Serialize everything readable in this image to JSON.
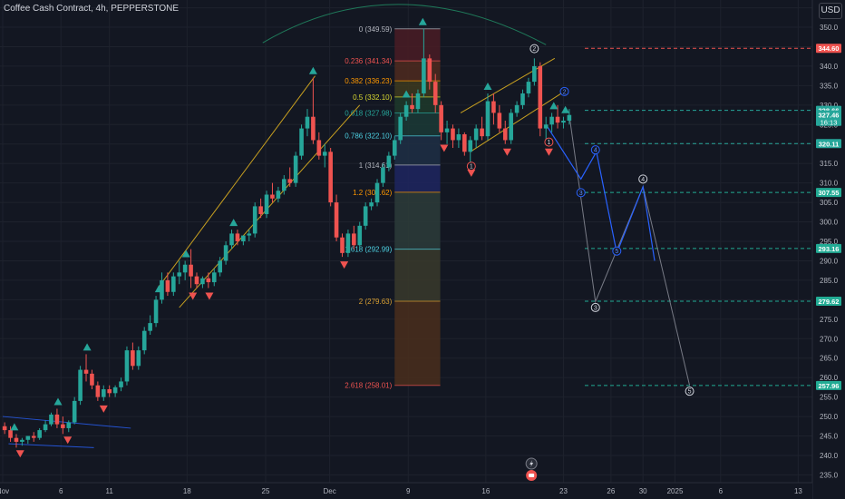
{
  "header": {
    "title": "Coffee Cash Contract, 4h, PEPPERSTONE",
    "currency": "USD"
  },
  "colors": {
    "up": "#26a69a",
    "down": "#ef5350",
    "bg": "#131722",
    "text": "#d1d4dc",
    "grid": "#1e222d"
  },
  "chart_data": {
    "type": "candlestick",
    "title": "Coffee Cash Contract, 4h, PEPPERSTONE",
    "ylim": [
      233,
      357
    ],
    "y_ticks": [
      235,
      240,
      245,
      250,
      255,
      260,
      265,
      270,
      275,
      280,
      285,
      290,
      295,
      300,
      305,
      310,
      315,
      320,
      325,
      330,
      335,
      340,
      345,
      350,
      355
    ],
    "x_ticks": [
      {
        "label": "Nov",
        "t": 0
      },
      {
        "label": "6",
        "t": 60
      },
      {
        "label": "11",
        "t": 110
      },
      {
        "label": "18",
        "t": 190
      },
      {
        "label": "25",
        "t": 271
      },
      {
        "label": "Dec",
        "t": 337
      },
      {
        "label": "9",
        "t": 418
      },
      {
        "label": "16",
        "t": 498
      },
      {
        "label": "23",
        "t": 578
      },
      {
        "label": "26",
        "t": 627
      },
      {
        "label": "30",
        "t": 660
      },
      {
        "label": "2025",
        "t": 693
      },
      {
        "label": "6",
        "t": 740
      },
      {
        "label": "13",
        "t": 820
      }
    ],
    "price_labels": [
      {
        "text": "344.60",
        "value": 344.6,
        "color": "#ef5350"
      },
      {
        "text": "328.66",
        "value": 328.66,
        "color": "#26a69a"
      },
      {
        "text": "327.46",
        "value": 327.46,
        "color": "#26a69a",
        "sub": "16:13"
      },
      {
        "text": "320.11",
        "value": 320.11,
        "color": "#26a69a"
      },
      {
        "text": "307.55",
        "value": 307.55,
        "color": "#22ab94"
      },
      {
        "text": "293.16",
        "value": 293.16,
        "color": "#22ab94"
      },
      {
        "text": "279.62",
        "value": 279.62,
        "color": "#22ab94"
      },
      {
        "text": "257.96",
        "value": 257.96,
        "color": "#22ab94"
      }
    ],
    "fib_levels": [
      {
        "ratio": "0",
        "value": 349.59,
        "label": "0 (349.59)",
        "color": "#b2b5be",
        "fill": "#4a1c24"
      },
      {
        "ratio": "0.236",
        "value": 341.34,
        "label": "0.236 (341.34)",
        "color": "#ef5350",
        "fill": "#4f2a1e"
      },
      {
        "ratio": "0.382",
        "value": 336.23,
        "label": "0.382 (336.23)",
        "color": "#ff9800",
        "fill": "#3d3a1e"
      },
      {
        "ratio": "0.5",
        "value": 332.1,
        "label": "0.5 (332.10)",
        "color": "#d9d932",
        "fill": "#1e3a2a"
      },
      {
        "ratio": "0.618",
        "value": 327.98,
        "label": "0.618 (327.98)",
        "color": "#26a69a",
        "fill": "#1b3a36"
      },
      {
        "ratio": "0.786",
        "value": 322.1,
        "label": "0.786 (322.10)",
        "color": "#4dd0e1",
        "fill": "#1e2f45"
      },
      {
        "ratio": "1",
        "value": 314.61,
        "label": "1 (314.61)",
        "color": "#b2b5be",
        "fill": "#1e2660"
      },
      {
        "ratio": "1.2",
        "value": 307.62,
        "label": "1.2 (307.62)",
        "color": "#ff9800",
        "fill": "#2d3c3a"
      },
      {
        "ratio": "1.618",
        "value": 292.99,
        "label": "1.618 (292.99)",
        "color": "#4dd0e1",
        "fill": "#3a3a2c"
      },
      {
        "ratio": "2",
        "value": 279.63,
        "label": "2 (279.63)",
        "color": "#d9a032",
        "fill": "#4a2e1c"
      },
      {
        "ratio": "2.618",
        "value": 258.01,
        "label": "2.618 (258.01)",
        "color": "#ef5350"
      }
    ],
    "candles": [
      {
        "t": 2,
        "o": 247.5,
        "h": 248.5,
        "c": 246.5,
        "l": 245.5
      },
      {
        "t": 8,
        "o": 246.5,
        "h": 247.5,
        "c": 244.5,
        "l": 243.5
      },
      {
        "t": 14,
        "o": 244.5,
        "h": 245.5,
        "c": 243.5,
        "l": 242.0
      },
      {
        "t": 20,
        "o": 243.5,
        "h": 244.5,
        "c": 244.0,
        "l": 242.5
      },
      {
        "t": 26,
        "o": 244,
        "h": 245,
        "c": 245,
        "l": 243
      },
      {
        "t": 32,
        "o": 245,
        "h": 246,
        "c": 244.5,
        "l": 243.5
      },
      {
        "t": 38,
        "o": 244.5,
        "h": 247,
        "c": 246.5,
        "l": 244
      },
      {
        "t": 44,
        "o": 246.5,
        "h": 249,
        "c": 248,
        "l": 246
      },
      {
        "t": 50,
        "o": 248,
        "h": 251,
        "c": 250.5,
        "l": 247.5
      },
      {
        "t": 56,
        "o": 250.5,
        "h": 252,
        "c": 248,
        "l": 247
      },
      {
        "t": 62,
        "o": 248,
        "h": 250,
        "c": 247,
        "l": 245.5
      },
      {
        "t": 68,
        "o": 247,
        "h": 249,
        "c": 248.5,
        "l": 246
      },
      {
        "t": 74,
        "o": 248.5,
        "h": 255,
        "c": 254,
        "l": 248
      },
      {
        "t": 80,
        "o": 254,
        "h": 263,
        "c": 262,
        "l": 253
      },
      {
        "t": 86,
        "o": 262,
        "h": 266,
        "c": 261,
        "l": 259
      },
      {
        "t": 92,
        "o": 261,
        "h": 262,
        "c": 258,
        "l": 257
      },
      {
        "t": 98,
        "o": 258,
        "h": 259,
        "c": 255,
        "l": 254
      },
      {
        "t": 104,
        "o": 255,
        "h": 258,
        "c": 257,
        "l": 254
      },
      {
        "t": 110,
        "o": 257,
        "h": 258,
        "c": 256,
        "l": 255
      },
      {
        "t": 116,
        "o": 256,
        "h": 258,
        "c": 257.5,
        "l": 255
      },
      {
        "t": 122,
        "o": 257.5,
        "h": 260,
        "c": 259,
        "l": 256.5
      },
      {
        "t": 128,
        "o": 259,
        "h": 268,
        "c": 267,
        "l": 258
      },
      {
        "t": 134,
        "o": 267,
        "h": 269,
        "c": 263,
        "l": 262
      },
      {
        "t": 140,
        "o": 263,
        "h": 268,
        "c": 267,
        "l": 262
      },
      {
        "t": 146,
        "o": 267,
        "h": 273,
        "c": 272,
        "l": 266
      },
      {
        "t": 152,
        "o": 272,
        "h": 276,
        "c": 274,
        "l": 271
      },
      {
        "t": 158,
        "o": 274,
        "h": 281,
        "c": 280,
        "l": 273
      },
      {
        "t": 164,
        "o": 280,
        "h": 287,
        "c": 285,
        "l": 279
      },
      {
        "t": 170,
        "o": 285,
        "h": 287,
        "c": 282,
        "l": 281
      },
      {
        "t": 176,
        "o": 282,
        "h": 287,
        "c": 286,
        "l": 281
      },
      {
        "t": 182,
        "o": 286,
        "h": 290,
        "c": 287,
        "l": 284
      },
      {
        "t": 188,
        "o": 287,
        "h": 290,
        "c": 289,
        "l": 285
      },
      {
        "t": 194,
        "o": 289,
        "h": 293,
        "c": 286,
        "l": 283
      },
      {
        "t": 200,
        "o": 286,
        "h": 287,
        "c": 284,
        "l": 283
      },
      {
        "t": 206,
        "o": 284,
        "h": 286,
        "c": 285.5,
        "l": 283
      },
      {
        "t": 212,
        "o": 285.5,
        "h": 287,
        "c": 284.5,
        "l": 283
      },
      {
        "t": 218,
        "o": 284.5,
        "h": 288,
        "c": 287,
        "l": 283.5
      },
      {
        "t": 224,
        "o": 287,
        "h": 291,
        "c": 290,
        "l": 286
      },
      {
        "t": 230,
        "o": 290,
        "h": 295,
        "c": 294,
        "l": 289
      },
      {
        "t": 236,
        "o": 294,
        "h": 298,
        "c": 297,
        "l": 293
      },
      {
        "t": 242,
        "o": 297,
        "h": 298,
        "c": 295,
        "l": 294
      },
      {
        "t": 248,
        "o": 295,
        "h": 296,
        "c": 296.5,
        "l": 294
      },
      {
        "t": 254,
        "o": 296.5,
        "h": 298,
        "c": 297,
        "l": 295
      },
      {
        "t": 260,
        "o": 297,
        "h": 305,
        "c": 304,
        "l": 296
      },
      {
        "t": 266,
        "o": 304,
        "h": 306,
        "c": 302,
        "l": 301
      },
      {
        "t": 272,
        "o": 302,
        "h": 308,
        "c": 307,
        "l": 301
      },
      {
        "t": 278,
        "o": 307,
        "h": 310,
        "c": 306,
        "l": 305
      },
      {
        "t": 284,
        "o": 306,
        "h": 309,
        "c": 308,
        "l": 305
      },
      {
        "t": 290,
        "o": 308,
        "h": 312,
        "c": 311,
        "l": 307
      },
      {
        "t": 296,
        "o": 311,
        "h": 314,
        "c": 310,
        "l": 309
      },
      {
        "t": 302,
        "o": 310,
        "h": 318,
        "c": 317,
        "l": 309
      },
      {
        "t": 308,
        "o": 317,
        "h": 325,
        "c": 324,
        "l": 316
      },
      {
        "t": 314,
        "o": 324,
        "h": 329,
        "c": 327,
        "l": 322
      },
      {
        "t": 320,
        "o": 327,
        "h": 337,
        "c": 321,
        "l": 320
      },
      {
        "t": 326,
        "o": 321,
        "h": 323,
        "c": 317,
        "l": 316
      },
      {
        "t": 332,
        "o": 317,
        "h": 320,
        "c": 318,
        "l": 314
      },
      {
        "t": 338,
        "o": 318,
        "h": 319,
        "c": 305,
        "l": 304
      },
      {
        "t": 344,
        "o": 305,
        "h": 307,
        "c": 296,
        "l": 295
      },
      {
        "t": 350,
        "o": 296,
        "h": 297,
        "c": 292,
        "l": 291
      },
      {
        "t": 356,
        "o": 292,
        "h": 298,
        "c": 297,
        "l": 291
      },
      {
        "t": 362,
        "o": 297,
        "h": 299,
        "c": 294,
        "l": 293
      },
      {
        "t": 368,
        "o": 294,
        "h": 300,
        "c": 299,
        "l": 293
      },
      {
        "t": 374,
        "o": 299,
        "h": 305,
        "c": 304,
        "l": 298
      },
      {
        "t": 380,
        "o": 304,
        "h": 306,
        "c": 305,
        "l": 303
      },
      {
        "t": 386,
        "o": 305,
        "h": 311,
        "c": 310,
        "l": 304
      },
      {
        "t": 392,
        "o": 310,
        "h": 315,
        "c": 314,
        "l": 309
      },
      {
        "t": 398,
        "o": 314,
        "h": 318,
        "c": 317,
        "l": 313
      },
      {
        "t": 404,
        "o": 317,
        "h": 322,
        "c": 321,
        "l": 316
      },
      {
        "t": 410,
        "o": 321,
        "h": 328,
        "c": 327,
        "l": 320
      },
      {
        "t": 416,
        "o": 327,
        "h": 331,
        "c": 330,
        "l": 326
      },
      {
        "t": 422,
        "o": 330,
        "h": 333,
        "c": 329,
        "l": 328
      },
      {
        "t": 428,
        "o": 329,
        "h": 334,
        "c": 333,
        "l": 328
      },
      {
        "t": 434,
        "o": 333,
        "h": 349.6,
        "c": 342,
        "l": 332
      },
      {
        "t": 440,
        "o": 342,
        "h": 343,
        "c": 336,
        "l": 334
      },
      {
        "t": 446,
        "o": 336,
        "h": 338,
        "c": 330,
        "l": 328
      },
      {
        "t": 452,
        "o": 330,
        "h": 331,
        "c": 323,
        "l": 321
      },
      {
        "t": 458,
        "o": 323,
        "h": 326,
        "c": 324,
        "l": 320
      },
      {
        "t": 464,
        "o": 324,
        "h": 325,
        "c": 321,
        "l": 319
      },
      {
        "t": 470,
        "o": 321,
        "h": 324,
        "c": 322.5,
        "l": 319
      },
      {
        "t": 476,
        "o": 322.5,
        "h": 323,
        "c": 318,
        "l": 317
      },
      {
        "t": 482,
        "o": 318,
        "h": 322,
        "c": 321,
        "l": 314.6
      },
      {
        "t": 488,
        "o": 321,
        "h": 325,
        "c": 324,
        "l": 319
      },
      {
        "t": 494,
        "o": 324,
        "h": 327,
        "c": 322,
        "l": 321
      },
      {
        "t": 500,
        "o": 322,
        "h": 333,
        "c": 331,
        "l": 321
      },
      {
        "t": 506,
        "o": 331,
        "h": 333,
        "c": 328,
        "l": 325
      },
      {
        "t": 512,
        "o": 328,
        "h": 330,
        "c": 324,
        "l": 323
      },
      {
        "t": 518,
        "o": 324,
        "h": 326,
        "c": 321,
        "l": 320
      },
      {
        "t": 524,
        "o": 321,
        "h": 329,
        "c": 328,
        "l": 320
      },
      {
        "t": 530,
        "o": 328,
        "h": 331,
        "c": 330,
        "l": 327
      },
      {
        "t": 536,
        "o": 330,
        "h": 334,
        "c": 333,
        "l": 329
      },
      {
        "t": 542,
        "o": 333,
        "h": 337,
        "c": 336,
        "l": 332
      },
      {
        "t": 548,
        "o": 336,
        "h": 342,
        "c": 340,
        "l": 335
      },
      {
        "t": 554,
        "o": 340,
        "h": 341,
        "c": 324,
        "l": 322
      },
      {
        "t": 560,
        "o": 324,
        "h": 327,
        "c": 325,
        "l": 320
      },
      {
        "t": 566,
        "o": 325,
        "h": 328,
        "c": 327,
        "l": 323
      },
      {
        "t": 572,
        "o": 327,
        "h": 330,
        "c": 325.5,
        "l": 324
      },
      {
        "t": 578,
        "o": 325.5,
        "h": 327,
        "c": 326,
        "l": 324
      },
      {
        "t": 584,
        "o": 326,
        "h": 329,
        "c": 327.46,
        "l": 325
      }
    ],
    "up_markers": [
      12,
      57,
      87,
      161,
      189,
      238,
      320,
      416,
      433,
      500,
      568,
      580
    ],
    "down_markers": [
      18,
      67,
      104,
      196,
      213,
      352,
      455,
      483,
      520,
      563
    ],
    "wave_main": [
      {
        "t": 560,
        "v": 325
      },
      {
        "t": 596,
        "v": 311
      },
      {
        "t": 612,
        "v": 318
      },
      {
        "t": 633,
        "v": 292
      },
      {
        "t": 660,
        "v": 309
      },
      {
        "t": 672,
        "v": 290
      }
    ],
    "wave_grey": [
      {
        "t": 584,
        "v": 327.46
      },
      {
        "t": 611,
        "v": 279.5
      },
      {
        "t": 660,
        "v": 309
      },
      {
        "t": 708,
        "v": 258
      }
    ],
    "wave_labels": [
      {
        "text": "2",
        "t": 548,
        "v": 344.5,
        "style": "w"
      },
      {
        "text": "2",
        "t": 579,
        "v": 333.5,
        "style": "b"
      },
      {
        "text": "4",
        "t": 611,
        "v": 318.5,
        "style": "b"
      },
      {
        "text": "3",
        "t": 596,
        "v": 307.5,
        "style": "b"
      },
      {
        "text": "5",
        "t": 633,
        "v": 292.5,
        "style": "b"
      },
      {
        "text": "4",
        "t": 660,
        "v": 311,
        "style": "w"
      },
      {
        "text": "3",
        "t": 611,
        "v": 278,
        "style": "w"
      },
      {
        "text": "5",
        "t": 708,
        "v": 256.5,
        "style": "w"
      },
      {
        "text": "1",
        "t": 483,
        "v": 314.3,
        "style": "r"
      },
      {
        "text": "1",
        "t": 563,
        "v": 320.5,
        "style": "r"
      }
    ],
    "channel_lines": [
      {
        "p": [
          [
            160,
            283
          ],
          [
            322,
            337.5
          ]
        ],
        "color": "#c8a020"
      },
      {
        "p": [
          [
            182,
            278
          ],
          [
            368,
            330
          ]
        ],
        "color": "#c8a020"
      },
      {
        "p": [
          [
            472,
            328
          ],
          [
            569,
            342
          ]
        ],
        "color": "#c8a020"
      },
      {
        "p": [
          [
            482,
            318
          ],
          [
            582,
            334
          ]
        ],
        "color": "#c8a020"
      }
    ],
    "blue_lines": [
      {
        "p": [
          [
            0,
            250
          ],
          [
            132,
            247
          ]
        ]
      },
      {
        "p": [
          [
            6,
            243
          ],
          [
            94,
            242
          ]
        ]
      }
    ],
    "dashed_levels": [
      {
        "value": 344.6,
        "color": "#ef5350",
        "from": 600
      },
      {
        "value": 328.66,
        "color": "#26a69a",
        "from": 600
      },
      {
        "value": 320.11,
        "color": "#26a69a",
        "from": 600
      },
      {
        "value": 307.55,
        "color": "#22ab94",
        "from": 600
      },
      {
        "value": 293.16,
        "color": "#22ab94",
        "from": 600
      },
      {
        "value": 279.62,
        "color": "#22ab94",
        "from": 600
      },
      {
        "value": 257.96,
        "color": "#22ab94",
        "from": 600
      }
    ]
  }
}
